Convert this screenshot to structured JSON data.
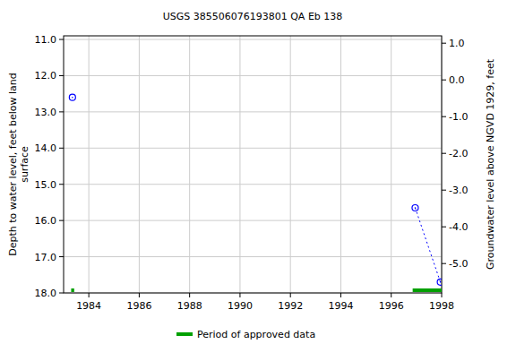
{
  "chart_data": {
    "type": "scatter",
    "title": "USGS 385506076193801 QA Eb 138",
    "ylabel": "Depth to water level, feet below land surface",
    "y2label": "Groundwater level above NGVD 1929, feet",
    "xlim": [
      1983.0,
      1998.0
    ],
    "xticks": [
      1984,
      1986,
      1988,
      1990,
      1992,
      1994,
      1996,
      1998
    ],
    "ylim": [
      18.0,
      10.9
    ],
    "yticks": [
      {
        "value": 11,
        "label": "11.0"
      },
      {
        "value": 12,
        "label": "12.0"
      },
      {
        "value": 13,
        "label": "13.0"
      },
      {
        "value": 14,
        "label": "14.0"
      },
      {
        "value": 15,
        "label": "15.0"
      },
      {
        "value": 16,
        "label": "16.0"
      },
      {
        "value": 17,
        "label": "17.0"
      },
      {
        "value": 18,
        "label": "18.0"
      }
    ],
    "y2lim": [
      -5.8,
      1.2
    ],
    "y2ticks": [
      {
        "value": 1,
        "label": "1.0"
      },
      {
        "value": 0,
        "label": "0.0"
      },
      {
        "value": -1,
        "label": "-1.0"
      },
      {
        "value": -2,
        "label": "-2.0"
      },
      {
        "value": -3,
        "label": "-3.0"
      },
      {
        "value": -4,
        "label": "-4.0"
      },
      {
        "value": -5,
        "label": "-5.0"
      }
    ],
    "grid": true,
    "series": [
      {
        "color": "#0000ff",
        "marker": "circle",
        "line_style": "none",
        "x": [
          1983.35
        ],
        "values": [
          12.6
        ]
      },
      {
        "color": "#0000ff",
        "marker": "circle",
        "line_style": "dotted",
        "x": [
          1996.95,
          1997.95
        ],
        "values": [
          15.65,
          17.7
        ]
      }
    ],
    "approved_periods": {
      "name": "Period of approved data",
      "color": "#00a000",
      "x": [
        [
          1983.3,
          1983.42
        ],
        [
          1996.85,
          1998.0
        ]
      ]
    }
  }
}
